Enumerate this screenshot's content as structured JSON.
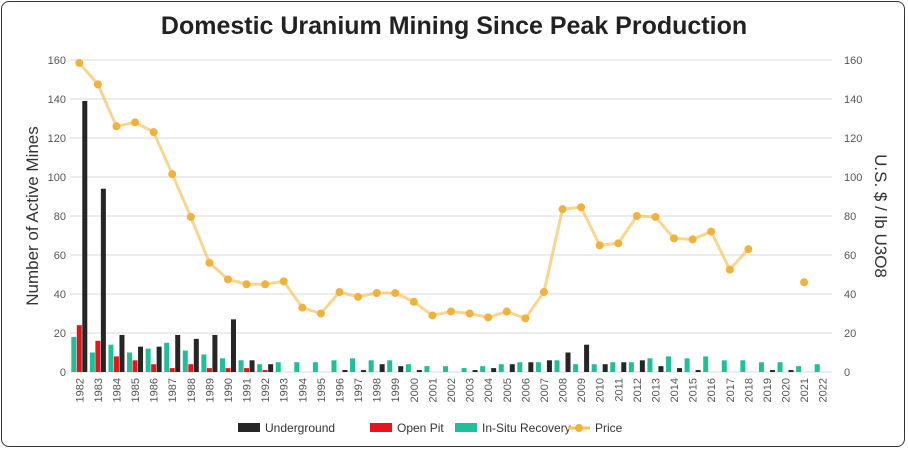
{
  "chart_data": {
    "type": "bar",
    "title": "Domestic Uranium Mining Since Peak Production",
    "ylabel": "Number of Active Mines",
    "y2label": "U.S. $ / lb U3O8",
    "ylim": [
      0,
      160
    ],
    "y2lim": [
      0,
      160
    ],
    "yticks": [
      0,
      20,
      40,
      60,
      80,
      100,
      120,
      140,
      160
    ],
    "grid": true,
    "legend_position": "bottom",
    "categories": [
      "1982",
      "1983",
      "1984",
      "1985",
      "1986",
      "1987",
      "1988",
      "1989",
      "1990",
      "1991",
      "1992",
      "1993",
      "1994",
      "1995",
      "1996",
      "1997",
      "1998",
      "1999",
      "2000",
      "2001",
      "2002",
      "2003",
      "2004",
      "2005",
      "2006",
      "2007",
      "2008",
      "2009",
      "2010",
      "2011",
      "2012",
      "2013",
      "2014",
      "2015",
      "2016",
      "2017",
      "2018",
      "2019",
      "2020",
      "2021",
      "2022"
    ],
    "series": [
      {
        "name": "In-Situ Recovery",
        "type": "bar",
        "color": "#1fbf9a",
        "values": [
          18,
          10,
          14,
          10,
          12,
          15,
          11,
          9,
          7,
          6,
          4,
          5,
          5,
          5,
          6,
          7,
          6,
          6,
          4,
          3,
          3,
          2,
          3,
          4,
          5,
          5,
          6,
          4,
          4,
          5,
          5,
          7,
          8,
          7,
          8,
          6,
          6,
          5,
          5,
          3,
          4
        ]
      },
      {
        "name": "Open Pit",
        "type": "bar",
        "color": "#e8141b",
        "values": [
          24,
          16,
          8,
          6,
          4,
          2,
          4,
          2,
          2,
          2,
          1,
          0,
          0,
          0,
          0,
          0,
          0,
          0,
          0,
          0,
          0,
          0,
          0,
          0,
          0,
          0,
          0,
          0,
          0,
          0,
          0,
          0,
          0,
          0,
          0,
          0,
          0,
          0,
          0,
          0,
          0
        ]
      },
      {
        "name": "Underground",
        "type": "bar",
        "color": "#262626",
        "values": [
          139,
          94,
          19,
          13,
          13,
          19,
          17,
          19,
          27,
          6,
          4,
          0,
          0,
          0,
          1,
          1,
          4,
          3,
          1,
          0,
          0,
          1,
          2,
          4,
          5,
          6,
          10,
          14,
          4,
          5,
          6,
          3,
          2,
          1,
          0,
          0,
          0,
          1,
          1,
          0,
          0
        ]
      },
      {
        "name": "Price",
        "type": "line",
        "axis": "right",
        "color": "#f5c45e",
        "values": [
          158.5,
          147.5,
          126,
          128,
          123,
          101.5,
          79.5,
          56,
          47.5,
          45,
          45,
          46.5,
          33,
          30,
          41,
          38.5,
          40.5,
          40.5,
          36,
          29,
          31,
          30,
          28,
          31,
          27.5,
          41,
          83.5,
          84.5,
          65,
          66,
          80,
          79.5,
          68.5,
          68,
          72,
          52.5,
          63,
          null,
          null,
          46,
          null
        ]
      }
    ],
    "legend": [
      "Underground",
      "Open Pit",
      "In-Situ Recovery",
      "Price"
    ]
  }
}
